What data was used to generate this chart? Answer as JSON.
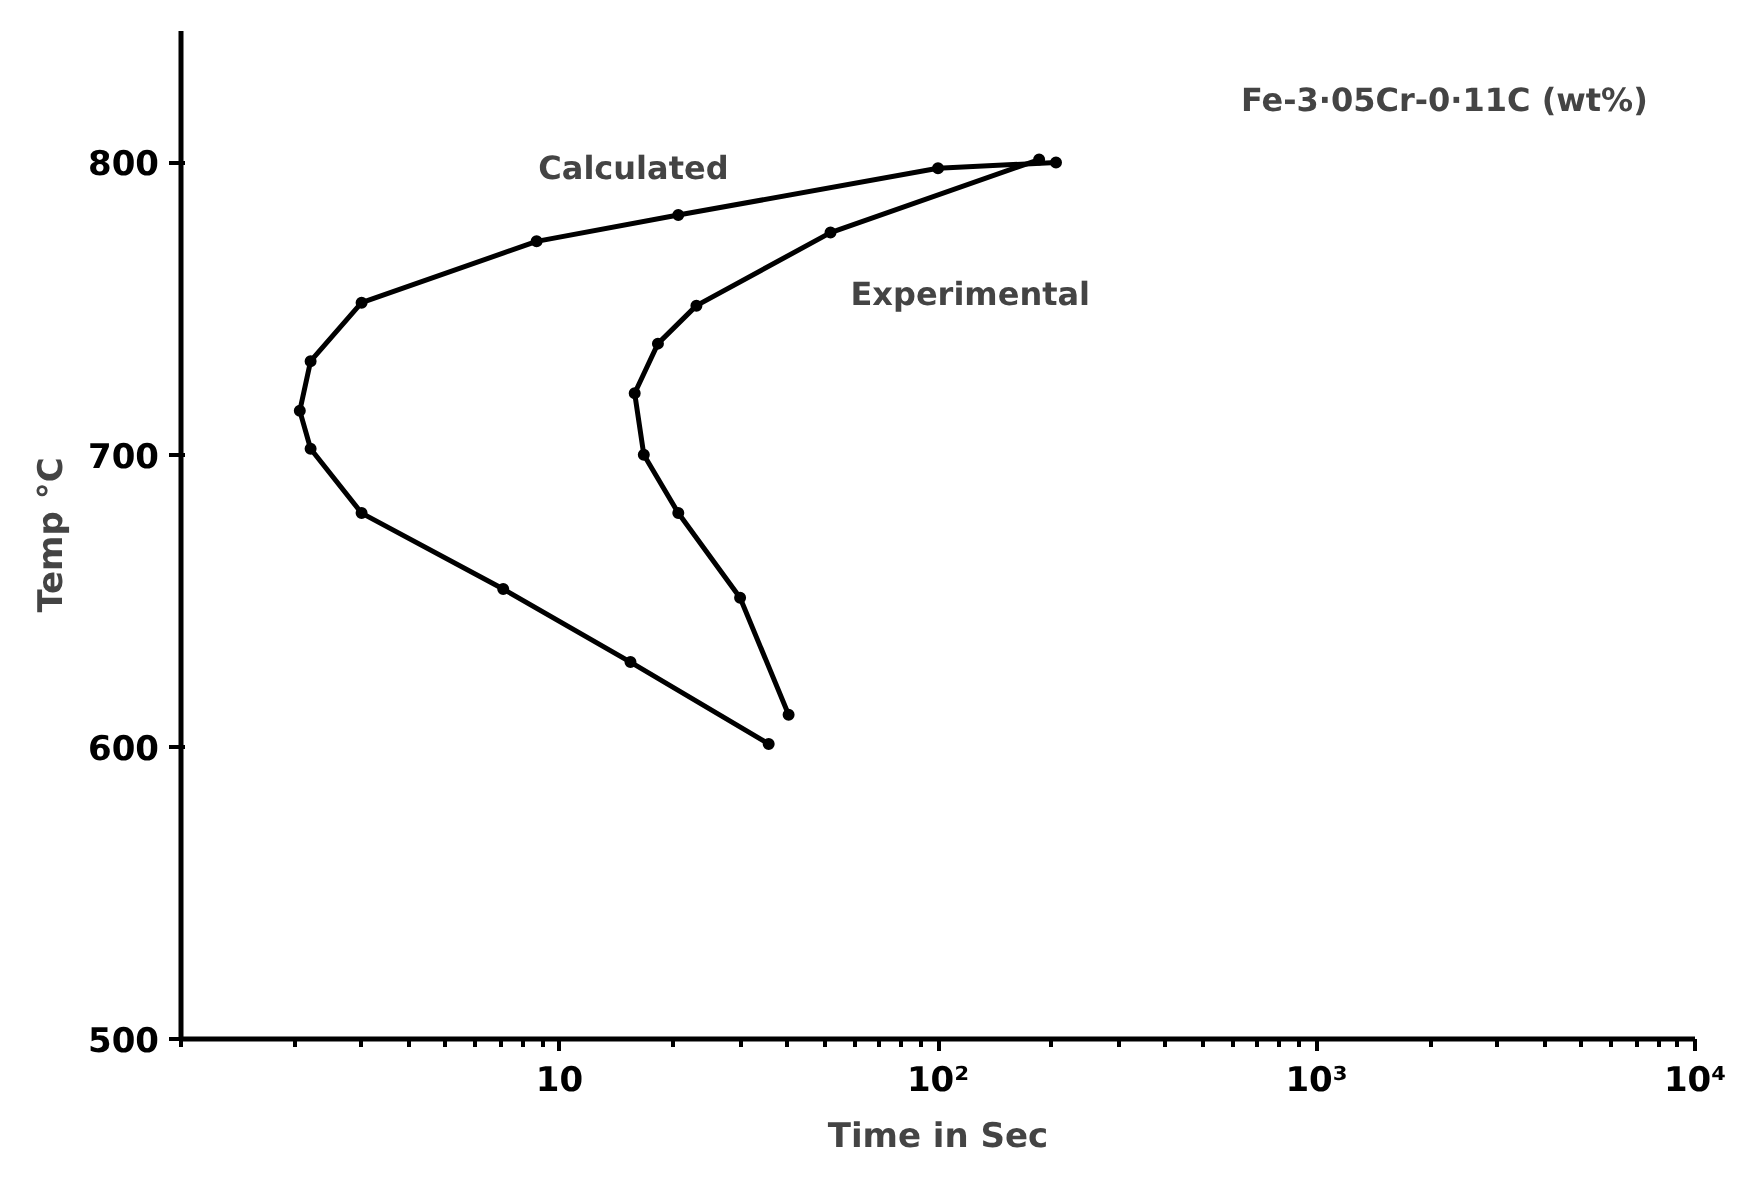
{
  "chart_data": {
    "type": "line",
    "xlabel": "Time in Sec",
    "ylabel": "Temp °C",
    "log": "x",
    "xlim": [
      1,
      10000
    ],
    "ylim": [
      500,
      845
    ],
    "xticks": [
      {
        "value": 10,
        "label": "10"
      },
      {
        "value": 100,
        "label": "10²"
      },
      {
        "value": 1000,
        "label": "10³"
      },
      {
        "value": 10000,
        "label": "10⁴"
      }
    ],
    "yticks": [
      500,
      600,
      700,
      800
    ],
    "grid": false,
    "legend": false,
    "marker": "circle",
    "line_style": "solid",
    "series": [
      {
        "name": "Calculated",
        "color": "#000000",
        "x": [
          205,
          100,
          20.6,
          8.7,
          3.0,
          2.2,
          2.06,
          2.2,
          3.0,
          7.1,
          15.4,
          35.7
        ],
        "values": [
          800,
          798,
          782,
          773,
          752,
          732,
          715,
          702,
          680,
          654,
          629,
          601
        ]
      },
      {
        "name": "Experimental",
        "color": "#000000",
        "x": [
          185,
          52,
          23,
          18.2,
          15.8,
          16.7,
          20.6,
          30,
          40.3
        ],
        "values": [
          801,
          776,
          751,
          738,
          721,
          700,
          680,
          651,
          611
        ]
      }
    ],
    "annotations": [
      "Fe-3·05Cr-0·11C (wt%)"
    ]
  }
}
